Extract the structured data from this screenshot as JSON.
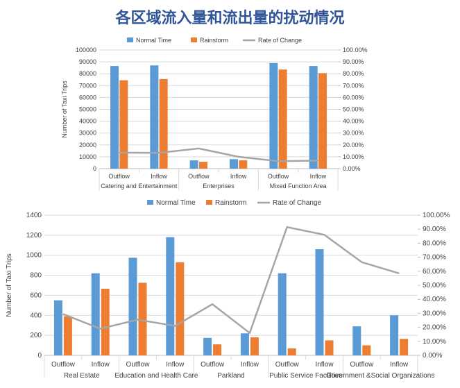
{
  "title": "各区域流入量和流出量的扰动情况",
  "colors": {
    "normal": "#5b9bd5",
    "rainstorm": "#ed7d31",
    "rate": "#a5a5a5",
    "title": "#2f5597"
  },
  "chart_data": [
    {
      "type": "bar",
      "legend": [
        "Normal Time",
        "Rainstorm",
        "Rate of Change"
      ],
      "legend_position": "top",
      "ylabel": "Number of Taxi Trips",
      "ylim": [
        0,
        100000
      ],
      "y_ticks": [
        "0",
        "10000",
        "20000",
        "30000",
        "40000",
        "50000",
        "60000",
        "70000",
        "80000",
        "90000",
        "100000"
      ],
      "y2lim": [
        0,
        100
      ],
      "y2_ticks": [
        "0.00%",
        "10.00%",
        "20.00%",
        "30.00%",
        "40.00%",
        "50.00%",
        "60.00%",
        "70.00%",
        "80.00%",
        "90.00%",
        "100.00%"
      ],
      "categories": [
        "Outflow",
        "Inflow",
        "Outflow",
        "Inflow",
        "Outflow",
        "Inflow"
      ],
      "groups": [
        "Catering and Entertainment",
        "Enterprises",
        "Mixed Function Area"
      ],
      "group_size": 2,
      "series": [
        {
          "name": "Normal Time",
          "kind": "bar",
          "values": [
            86500,
            87000,
            7000,
            8000,
            89000,
            86500
          ]
        },
        {
          "name": "Rainstorm",
          "kind": "bar",
          "values": [
            74500,
            75500,
            5800,
            7000,
            83500,
            80500
          ]
        },
        {
          "name": "Rate of Change",
          "kind": "line",
          "axis": "right",
          "values": [
            13.5,
            13.3,
            17.0,
            10.0,
            6.3,
            6.8
          ]
        }
      ],
      "grid": true
    },
    {
      "type": "bar",
      "legend": [
        "Normal Time",
        "Rainstorm",
        "Rate of Change"
      ],
      "legend_position": "top",
      "ylabel": "Number of Taxi Trips",
      "ylim": [
        0,
        1400
      ],
      "y_ticks": [
        "0",
        "200",
        "400",
        "600",
        "800",
        "1000",
        "1200",
        "1400"
      ],
      "y2lim": [
        0,
        100
      ],
      "y2_ticks": [
        "0.00%",
        "10.00%",
        "20.00%",
        "30.00%",
        "40.00%",
        "50.00%",
        "60.00%",
        "70.00%",
        "80.00%",
        "90.00%",
        "100.00%"
      ],
      "categories": [
        "Outflow",
        "Inflow",
        "Outflow",
        "Inflow",
        "Outflow",
        "Inflow",
        "Outflow",
        "Inflow",
        "Outflow",
        "Inflow"
      ],
      "groups": [
        "Real Estate",
        "Education and Health Care",
        "Parkland",
        "Public Service Facilities",
        "Government &Social Organizations"
      ],
      "group_size": 2,
      "series": [
        {
          "name": "Normal Time",
          "kind": "bar",
          "values": [
            550,
            820,
            975,
            1180,
            175,
            220,
            820,
            1060,
            290,
            400
          ]
        },
        {
          "name": "Rainstorm",
          "kind": "bar",
          "values": [
            390,
            665,
            725,
            930,
            110,
            180,
            70,
            150,
            100,
            165
          ]
        },
        {
          "name": "Rate of Change",
          "kind": "line",
          "axis": "right",
          "values": [
            29.5,
            19.0,
            25.5,
            21.0,
            36.5,
            16.0,
            91.5,
            86.0,
            66.5,
            58.5
          ]
        }
      ],
      "grid": true
    }
  ]
}
